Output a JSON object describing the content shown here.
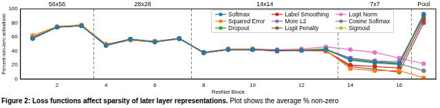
{
  "chart_data": {
    "type": "line",
    "title": "Figure 2: Loss functions affect sparsity of later layer representations.",
    "subtitle": "Plot shows the average % non-zero",
    "x_label": "ResNet Block",
    "y_label": "Percent non-zero activations",
    "x": [
      1,
      2,
      3,
      4,
      5,
      6,
      7,
      8,
      9,
      10,
      11,
      12,
      13,
      14,
      15,
      16,
      17
    ],
    "xlim": [
      0.5,
      17.5
    ],
    "xticks": [
      2,
      4,
      6,
      8,
      10,
      12,
      14,
      16
    ],
    "ylim": [
      0,
      100
    ],
    "yticks": [
      0,
      20,
      40,
      60,
      80,
      100
    ],
    "grid": false,
    "legend": "top",
    "annotations": [
      {
        "text": "56x56",
        "x": 2
      },
      {
        "text": "28x28",
        "x": 5.5
      },
      {
        "text": "14x14",
        "x": 10.5
      },
      {
        "text": "7x7",
        "x": 15
      },
      {
        "text": "Pool",
        "x": 17
      }
    ],
    "vlines": [
      3.5,
      7.5,
      13.5,
      16.5
    ],
    "series": [
      {
        "name": "Softmax",
        "color": "#1f77b4",
        "marker": "circle",
        "values": [
          58,
          74,
          76,
          48,
          57,
          53,
          58,
          38,
          42,
          42,
          41,
          41,
          42,
          28,
          24,
          22,
          92
        ]
      },
      {
        "name": "Squared Error",
        "color": "#ff7f0e",
        "marker": "circle",
        "values": [
          62,
          75,
          77,
          50,
          56,
          54,
          58,
          38,
          43,
          43,
          41,
          42,
          41,
          15,
          12,
          12,
          2
        ]
      },
      {
        "name": "Dropout",
        "color": "#2ca02c",
        "marker": "circle",
        "values": [
          59,
          74,
          76,
          48,
          57,
          53,
          58,
          38,
          42,
          42,
          41,
          41,
          43,
          27,
          23,
          21,
          90
        ]
      },
      {
        "name": "Label Smoothing",
        "color": "#d62728",
        "marker": "circle",
        "values": [
          58,
          74,
          76,
          49,
          56,
          53,
          58,
          38,
          42,
          42,
          40,
          41,
          40,
          20,
          18,
          16,
          85
        ]
      },
      {
        "name": "More L2",
        "color": "#9467bd",
        "marker": "circle",
        "values": [
          60,
          74,
          77,
          49,
          57,
          53,
          58,
          37,
          42,
          42,
          41,
          41,
          42,
          30,
          26,
          25,
          88
        ]
      },
      {
        "name": "Logit Penalty",
        "color": "#8c564b",
        "marker": "circle",
        "values": [
          58,
          74,
          76,
          48,
          56,
          53,
          58,
          38,
          42,
          42,
          40,
          41,
          40,
          18,
          14,
          10,
          80
        ]
      },
      {
        "name": "Logit Norm",
        "color": "#e377c2",
        "marker": "circle",
        "values": [
          59,
          74,
          76,
          49,
          56,
          54,
          58,
          38,
          43,
          43,
          42,
          43,
          46,
          42,
          38,
          30,
          22
        ]
      },
      {
        "name": "Cosine Softmax",
        "color": "#7f7f7f",
        "marker": "circle",
        "values": [
          58,
          74,
          76,
          48,
          56,
          53,
          57,
          38,
          42,
          42,
          41,
          41,
          42,
          30,
          26,
          22,
          12
        ]
      },
      {
        "name": "Sigmoid",
        "color": "#bcbd22",
        "marker": "circle",
        "values": [
          59,
          75,
          77,
          49,
          57,
          54,
          58,
          38,
          43,
          43,
          41,
          42,
          43,
          29,
          25,
          23,
          93
        ]
      }
    ]
  }
}
